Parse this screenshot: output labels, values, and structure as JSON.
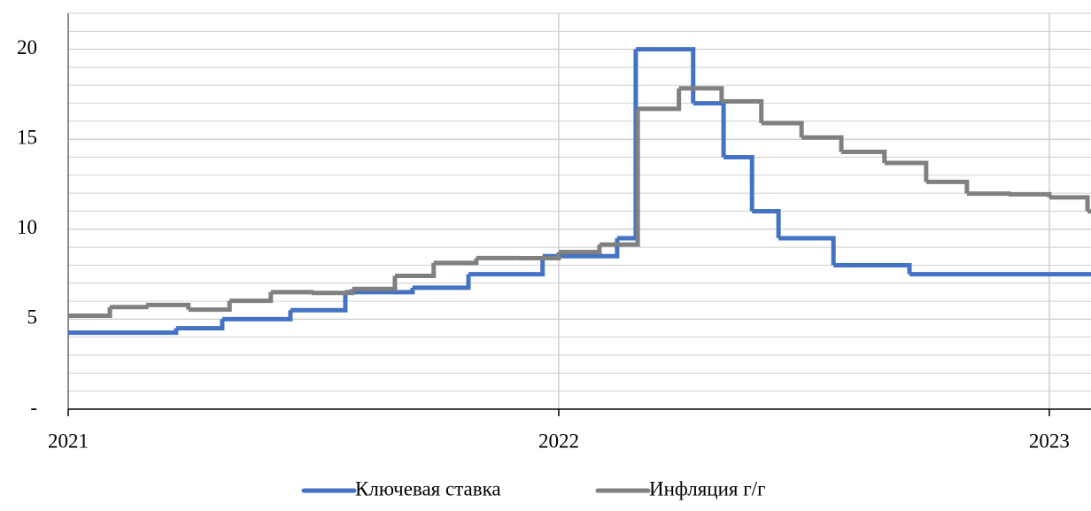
{
  "chart_data": {
    "type": "step",
    "xlim": [
      2021,
      2023.085
    ],
    "xticks": [
      2021,
      2022,
      2023
    ],
    "ylim": [
      0,
      22
    ],
    "yticks": [
      {
        "value": 0,
        "label": "-"
      },
      5,
      10,
      15,
      20
    ],
    "minor_grid": 1,
    "grid": true,
    "legend": "bottom",
    "series": [
      {
        "name": "Ключевая ставка",
        "color": "#4472c4",
        "x": [
          2021,
          2021.22,
          2021.314,
          2021.453,
          2021.565,
          2021.702,
          2021.816,
          2021.967,
          2022.119,
          2022.157,
          2022.274,
          2022.336,
          2022.394,
          2022.448,
          2022.56,
          2022.715
        ],
        "values": [
          4.25,
          4.5,
          5,
          5.5,
          6.5,
          6.75,
          7.5,
          8.5,
          9.5,
          20,
          17,
          14,
          11,
          9.5,
          8,
          7.5
        ]
      },
      {
        "name": "Инфляция г/г",
        "color": "#808080",
        "x": [
          2021,
          2021.085,
          2021.159,
          2021.245,
          2021.329,
          2021.413,
          2021.496,
          2021.579,
          2021.666,
          2021.745,
          2021.832,
          2021.915,
          2022.0,
          2022.083,
          2022.161,
          2022.245,
          2022.332,
          2022.413,
          2022.495,
          2022.576,
          2022.664,
          2022.749,
          2022.832,
          2022.917,
          2023.0,
          2023.078
        ],
        "values": [
          5.19,
          5.67,
          5.79,
          5.53,
          6.02,
          6.5,
          6.46,
          6.68,
          7.41,
          8.13,
          8.4,
          8.39,
          8.73,
          9.15,
          16.69,
          17.83,
          17.1,
          15.9,
          15.1,
          14.3,
          13.68,
          12.63,
          11.98,
          11.94,
          11.77,
          10.99
        ]
      }
    ]
  }
}
